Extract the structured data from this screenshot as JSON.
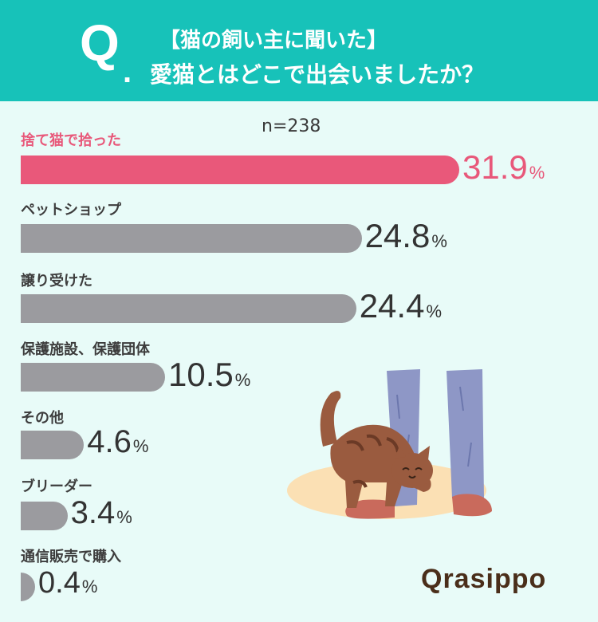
{
  "header": {
    "q_letter": "Q",
    "q_dot": ".",
    "line1": "【猫の飼い主に聞いた】",
    "line2": "愛猫とはどこで出会いましたか？"
  },
  "chart_data": {
    "type": "bar",
    "orientation": "horizontal",
    "sample_label": "n=238",
    "unit": "%",
    "categories": [
      "捨て猫で拾った",
      "ペットショップ",
      "譲り受けた",
      "保護施設、保護団体",
      "その他",
      "ブリーダー",
      "通信販売で購入"
    ],
    "values": [
      31.9,
      24.8,
      24.4,
      10.5,
      4.6,
      3.4,
      0.4
    ],
    "value_labels": [
      "31.9",
      "24.8",
      "24.4",
      "10.5",
      "4.6",
      "3.4",
      "0.4"
    ],
    "highlight_index": 0,
    "colors": {
      "highlight": "#e9587a",
      "default": "#9b9b9f",
      "text": "#3d3d3d",
      "header": "#17c2b9"
    }
  },
  "brand": {
    "logo": "Qrasippo"
  }
}
